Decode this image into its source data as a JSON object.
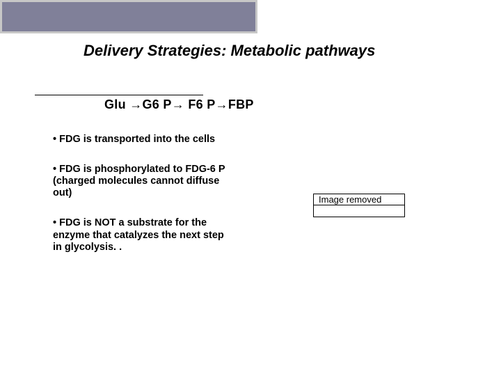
{
  "slide": {
    "title": "Delivery Strategies: Metabolic pathways",
    "pathway": "Glu →G6 P→ F6 P→FBP",
    "bullets": [
      "FDG is transported into the cells",
      "FDG is phosphorylated to FDG-6 P (charged molecules cannot diffuse out)",
      "FDG is NOT a substrate for the enzyme that catalyzes the next step in glycolysis. ."
    ],
    "image_placeholder": "Image removed"
  },
  "style": {
    "background_color": "#ffffff",
    "title_fontsize": 22,
    "title_color": "#000000",
    "body_fontsize": 14.5,
    "body_color": "#000000",
    "top_bar_outer_color": "#c7c7c7",
    "top_bar_inner_color": "#808099",
    "box_border_color": "#000000"
  }
}
